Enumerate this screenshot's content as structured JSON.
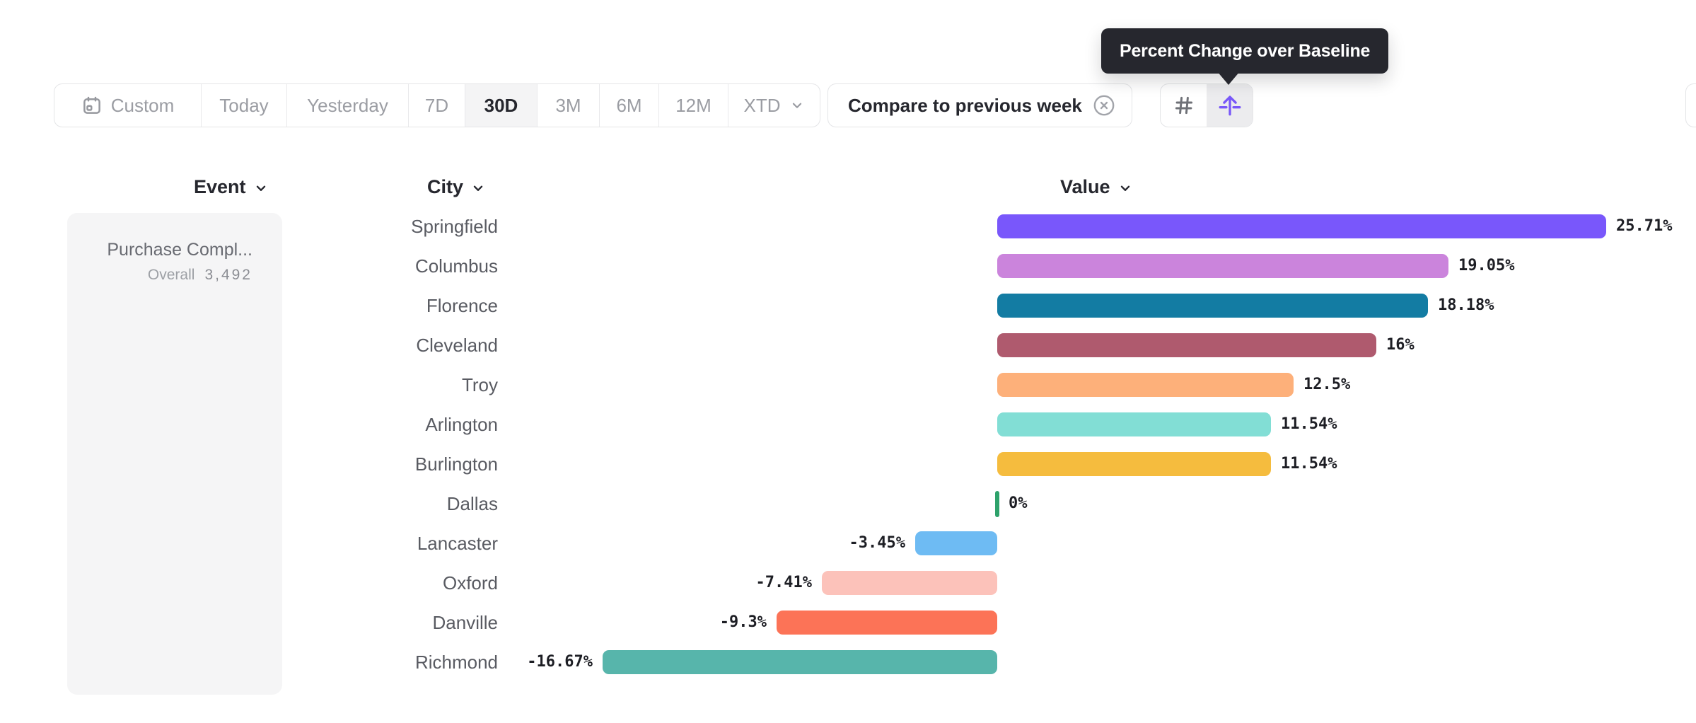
{
  "tooltip": {
    "text": "Percent Change over Baseline"
  },
  "toolbar": {
    "date_ranges": [
      {
        "label": "Custom",
        "icon": "calendar",
        "selected": false
      },
      {
        "label": "Today",
        "selected": false
      },
      {
        "label": "Yesterday",
        "selected": false
      },
      {
        "label": "7D",
        "selected": false
      },
      {
        "label": "30D",
        "selected": true
      },
      {
        "label": "3M",
        "selected": false
      },
      {
        "label": "6M",
        "selected": false
      },
      {
        "label": "12M",
        "selected": false
      },
      {
        "label": "XTD",
        "icon": "chevron-down",
        "selected": false
      }
    ],
    "compare_chip": {
      "label": "Compare to previous week",
      "icon": "circle-x"
    },
    "view_toggle": [
      {
        "name": "grid-view",
        "icon": "hash",
        "selected": false
      },
      {
        "name": "percent-change-over-baseline-view",
        "icon": "baseline-arrow",
        "selected": true
      }
    ]
  },
  "table": {
    "columns": [
      {
        "label": "Event"
      },
      {
        "label": "City"
      },
      {
        "label": "Value"
      }
    ]
  },
  "event_panel": {
    "name": "Purchase Compl...",
    "overall_label": "Overall",
    "overall_value": "3,492"
  },
  "chart_data": {
    "type": "bar",
    "orientation": "horizontal",
    "title": "Percent Change over Baseline",
    "categories": [
      "Springfield",
      "Columbus",
      "Florence",
      "Cleveland",
      "Troy",
      "Arlington",
      "Burlington",
      "Dallas",
      "Lancaster",
      "Oxford",
      "Danville",
      "Richmond"
    ],
    "values": [
      25.71,
      19.05,
      18.18,
      16,
      12.5,
      11.54,
      11.54,
      0,
      -3.45,
      -7.41,
      -9.3,
      -16.67
    ],
    "value_labels": [
      "25.71%",
      "19.05%",
      "18.18%",
      "16%",
      "12.5%",
      "11.54%",
      "11.54%",
      "0%",
      "-3.45%",
      "-7.41%",
      "-9.3%",
      "-16.67%"
    ],
    "bar_colors": [
      "#7957FB",
      "#CB84DC",
      "#137CA3",
      "#AF5A6E",
      "#FDB07A",
      "#82DED5",
      "#F5BC3E",
      "#2EA26B",
      "#6EBBF3",
      "#FCC2BA",
      "#FC7357",
      "#57B5AB"
    ],
    "baseline": 0,
    "xlim": [
      -16.67,
      25.71
    ],
    "grid": false,
    "value_label_color": "#1D1E24"
  },
  "colors": {
    "accent_purple": "#7857F8",
    "tooltip_bg": "#26272E",
    "selected_segment_bg": "#F4F4F5",
    "border": "#E4E5E7",
    "text_dark": "#26272E",
    "text_gray": "#9B9DA3",
    "zero_tick_green": "#2EA26B"
  }
}
